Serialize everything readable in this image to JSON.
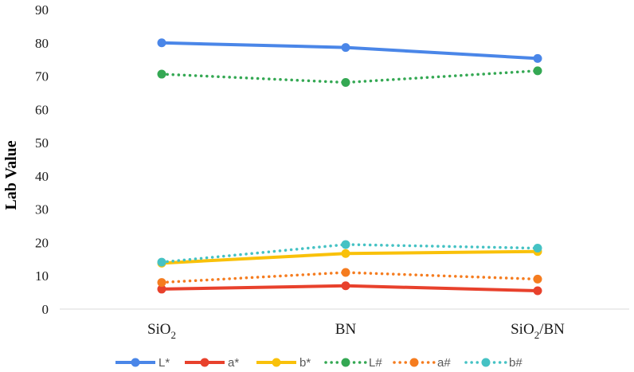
{
  "chart_data": {
    "type": "line",
    "ylabel": "Lab Value",
    "xlabel": "",
    "ylim": [
      0,
      90
    ],
    "yticks": [
      0,
      10,
      20,
      30,
      40,
      50,
      60,
      70,
      80,
      90
    ],
    "grid": false,
    "legend_position": "bottom",
    "categories": [
      {
        "base": "SiO",
        "sub": "2",
        "tail": ""
      },
      {
        "base": "BN",
        "sub": "",
        "tail": ""
      },
      {
        "base": "SiO",
        "sub": "2",
        "tail": "/BN"
      }
    ],
    "series": [
      {
        "name": "L*",
        "values": [
          80.0,
          78.6,
          75.3
        ],
        "color": "#4a86e8",
        "style": "solid"
      },
      {
        "name": "a*",
        "values": [
          6.0,
          7.0,
          5.5
        ],
        "color": "#e8412c",
        "style": "solid"
      },
      {
        "name": "b*",
        "values": [
          13.8,
          16.7,
          17.3
        ],
        "color": "#f9c10a",
        "style": "solid"
      },
      {
        "name": "L#",
        "values": [
          70.6,
          68.1,
          71.6
        ],
        "color": "#34a853",
        "style": "dotted"
      },
      {
        "name": "a#",
        "values": [
          8.0,
          11.0,
          9.0
        ],
        "color": "#f57c1f",
        "style": "dotted"
      },
      {
        "name": "b#",
        "values": [
          14.1,
          19.4,
          18.3
        ],
        "color": "#45c2c4",
        "style": "dotted"
      }
    ]
  }
}
